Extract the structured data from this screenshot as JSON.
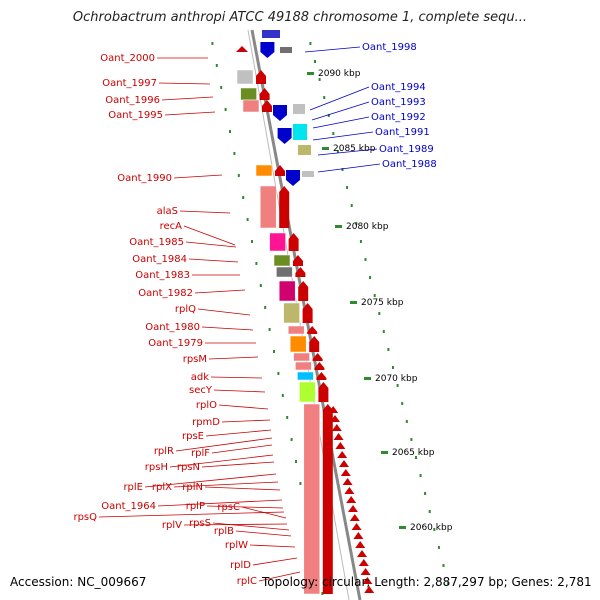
{
  "title": "Ochrobactrum anthropi ATCC 49188 chromosome 1, complete sequ...",
  "accession": "Accession: NC_009667",
  "topology": "Topology: circular; Length: 2,887,297 bp; Genes: 2,781",
  "colors": {
    "forward": "#0000cc",
    "reverse": "#cc0000",
    "backbone": "#888888",
    "tick": "#2e8b2e"
  },
  "kbp_ticks": [
    "2090 kbp",
    "2085 kbp",
    "2080 kbp",
    "2075 kbp",
    "2070 kbp",
    "2065 kbp",
    "2060 kbp"
  ],
  "right_labels": [
    "Oant_1998",
    "Oant_1994",
    "Oant_1993",
    "Oant_1992",
    "Oant_1991",
    "Oant_1989",
    "Oant_1988"
  ],
  "left_labels": [
    "Oant_2000",
    "Oant_1997",
    "Oant_1996",
    "Oant_1995",
    "Oant_1990",
    "alaS",
    "recA",
    "Oant_1985",
    "Oant_1984",
    "Oant_1983",
    "Oant_1982",
    "rplQ",
    "Oant_1980",
    "Oant_1979",
    "rpsM",
    "adk",
    "secY",
    "rplO",
    "rpmD",
    "rpsE",
    "rplR",
    "rplF",
    "rpsH",
    "rpsN",
    "rplE",
    "rplX",
    "rplN",
    "Oant_1964",
    "rplP",
    "rpsQ",
    "rpsC",
    "rplV",
    "rpsS",
    "rplB",
    "rplW",
    "rplD",
    "rplC"
  ]
}
